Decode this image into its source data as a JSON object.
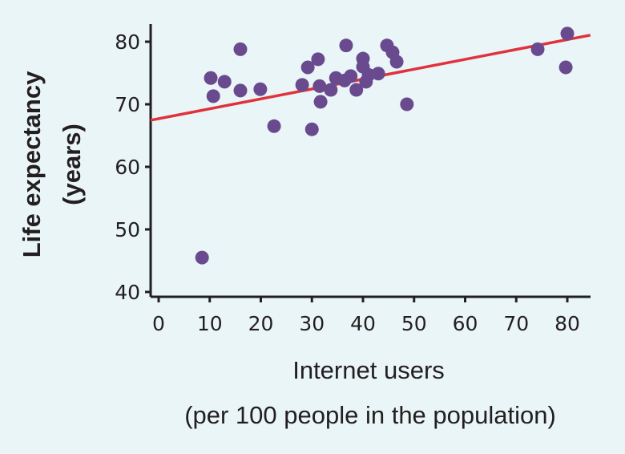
{
  "colors": {
    "background": "#eaf5f8",
    "point": "#6a4a8f",
    "trend_line": "#e0323c",
    "axis": "#231f20"
  },
  "chart_data": {
    "type": "scatter",
    "title": "",
    "xlabel": "Internet users",
    "xlabel_sub": "(per 100 people in the population)",
    "ylabel": "Life expectancy",
    "ylabel_sub": "(years)",
    "xlim": [
      -1.6,
      84.5
    ],
    "ylim": [
      39.2,
      83
    ],
    "xticks": [
      0,
      10,
      20,
      30,
      40,
      50,
      60,
      70,
      80
    ],
    "yticks": [
      40,
      50,
      60,
      70,
      80
    ],
    "grid": false,
    "points": [
      {
        "x": 10.2,
        "y": 74.2
      },
      {
        "x": 12.9,
        "y": 73.6
      },
      {
        "x": 10.7,
        "y": 71.3
      },
      {
        "x": 16.0,
        "y": 78.8
      },
      {
        "x": 16.0,
        "y": 72.2
      },
      {
        "x": 19.9,
        "y": 72.4
      },
      {
        "x": 22.6,
        "y": 66.5
      },
      {
        "x": 28.1,
        "y": 73.1
      },
      {
        "x": 29.2,
        "y": 75.9
      },
      {
        "x": 31.2,
        "y": 77.2
      },
      {
        "x": 31.7,
        "y": 70.4
      },
      {
        "x": 30.0,
        "y": 66.0
      },
      {
        "x": 31.5,
        "y": 72.9
      },
      {
        "x": 33.7,
        "y": 72.3
      },
      {
        "x": 34.7,
        "y": 74.2
      },
      {
        "x": 36.7,
        "y": 79.4
      },
      {
        "x": 36.4,
        "y": 73.8
      },
      {
        "x": 37.6,
        "y": 74.5
      },
      {
        "x": 38.7,
        "y": 72.3
      },
      {
        "x": 40.0,
        "y": 77.3
      },
      {
        "x": 40.0,
        "y": 76.0
      },
      {
        "x": 40.6,
        "y": 73.6
      },
      {
        "x": 41.1,
        "y": 74.7
      },
      {
        "x": 43.0,
        "y": 74.9
      },
      {
        "x": 44.7,
        "y": 79.4
      },
      {
        "x": 45.8,
        "y": 78.3
      },
      {
        "x": 46.6,
        "y": 76.8
      },
      {
        "x": 48.6,
        "y": 70.0
      },
      {
        "x": 8.5,
        "y": 45.5
      },
      {
        "x": 74.2,
        "y": 78.8
      },
      {
        "x": 80.0,
        "y": 81.3
      },
      {
        "x": 79.7,
        "y": 75.9
      }
    ],
    "trend_line": {
      "slope": 0.158,
      "intercept": 67.7
    }
  }
}
